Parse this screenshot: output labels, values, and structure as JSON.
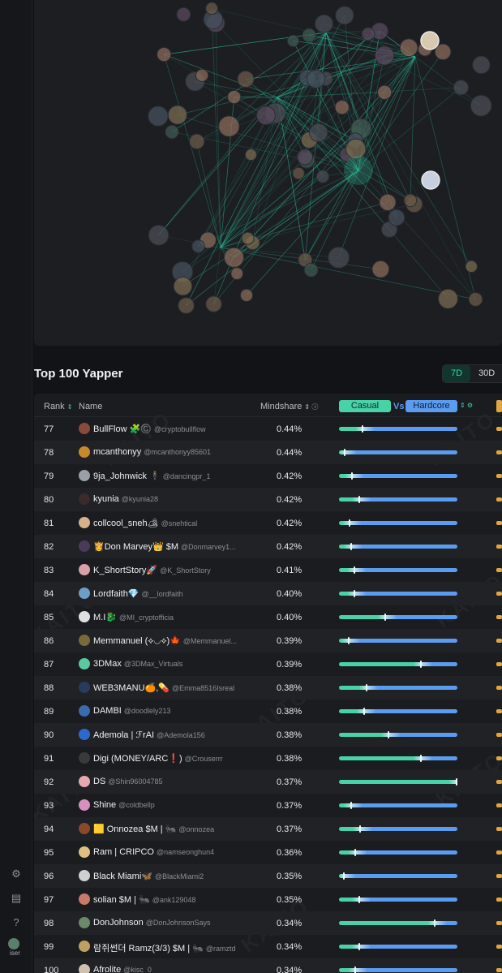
{
  "sidebar": {
    "icons": [
      "gear-icon",
      "id-card-icon",
      "help-icon"
    ],
    "user_label": "iser"
  },
  "section": {
    "title": "Top 100 Yapper",
    "periods": [
      "7D",
      "30D"
    ],
    "active_period": "7D"
  },
  "table": {
    "headers": {
      "rank": "Rank",
      "name": "Name",
      "mindshare": "Mindshare",
      "casual": "Casual",
      "vs": "Vs",
      "hardcore": "Hardcore"
    },
    "watermark": "KAITO",
    "rows": [
      {
        "rank": "77",
        "name": "BullFlow 🧩©️",
        "handle": "@cryptobullflow",
        "mindshare": "0.44%",
        "casual": 0.2,
        "color": "#8a4a3a"
      },
      {
        "rank": "78",
        "name": "mcanthonyy",
        "handle": "@mcanthonyy85601",
        "mindshare": "0.44%",
        "casual": 0.05,
        "color": "#c98a2c"
      },
      {
        "rank": "79",
        "name": "9ja_Johnwick 🕴",
        "handle": "@dancingpr_1",
        "mindshare": "0.42%",
        "casual": 0.11,
        "color": "#9aa0a6"
      },
      {
        "rank": "80",
        "name": "kyunia",
        "handle": "@kyunia28",
        "mindshare": "0.42%",
        "casual": 0.17,
        "color": "#3a2a2a"
      },
      {
        "rank": "81",
        "name": "collcool_sneh🏕",
        "handle": "@snehtical",
        "mindshare": "0.42%",
        "casual": 0.09,
        "color": "#d8b08a"
      },
      {
        "rank": "82",
        "name": "👸Don Marvey👑 $M",
        "handle": "@Donmarvey1...",
        "mindshare": "0.42%",
        "casual": 0.1,
        "color": "#4a3a5a"
      },
      {
        "rank": "83",
        "name": "K_ShortStory🚀",
        "handle": "@K_ShortStory",
        "mindshare": "0.41%",
        "casual": 0.13,
        "color": "#d9a0a8"
      },
      {
        "rank": "84",
        "name": "Lordfaith💎",
        "handle": "@__lordfaith",
        "mindshare": "0.40%",
        "casual": 0.13,
        "color": "#6aa0c8"
      },
      {
        "rank": "85",
        "name": "M.I🐉",
        "handle": "@MI_cryptofficia",
        "mindshare": "0.40%",
        "casual": 0.39,
        "color": "#e0e0e0"
      },
      {
        "rank": "86",
        "name": "Memmanuel (⟡◡⟡)🍁",
        "handle": "@Memmanuel...",
        "mindshare": "0.39%",
        "casual": 0.08,
        "color": "#7a6a3a"
      },
      {
        "rank": "87",
        "name": "3DMax",
        "handle": "@3DMax_Virtuals",
        "mindshare": "0.39%",
        "casual": 0.69,
        "color": "#5ac8a0"
      },
      {
        "rank": "88",
        "name": "WEB3MANU🍊,💊",
        "handle": "@Emma8516Isreal",
        "mindshare": "0.38%",
        "casual": 0.23,
        "color": "#2a3a5a"
      },
      {
        "rank": "89",
        "name": "DAMBI",
        "handle": "@doodlely213",
        "mindshare": "0.38%",
        "casual": 0.21,
        "color": "#3a6ab0"
      },
      {
        "rank": "90",
        "name": "Ademola | ℱrAI",
        "handle": "@Ademola156",
        "mindshare": "0.38%",
        "casual": 0.42,
        "color": "#2a6ad0"
      },
      {
        "rank": "91",
        "name": "Digi (MONEY/ARC❗)",
        "handle": "@Crouserrr",
        "mindshare": "0.38%",
        "casual": 0.69,
        "color": "#3a3a3a"
      },
      {
        "rank": "92",
        "name": "DS",
        "handle": "@Shin96004785",
        "mindshare": "0.37%",
        "casual": 0.99,
        "color": "#e8a8b0"
      },
      {
        "rank": "93",
        "name": "Shine",
        "handle": "@coldbellp",
        "mindshare": "0.37%",
        "casual": 0.1,
        "color": "#d890c0"
      },
      {
        "rank": "94",
        "name": "🟨 Onnozea $M | 🐜",
        "handle": "@onnozea",
        "mindshare": "0.37%",
        "casual": 0.18,
        "color": "#8a4a2a"
      },
      {
        "rank": "95",
        "name": "Ram | CRIPCO",
        "handle": "@namseonghun4",
        "mindshare": "0.36%",
        "casual": 0.14,
        "color": "#e0c080"
      },
      {
        "rank": "96",
        "name": "Black Miami🦋",
        "handle": "@BlackMiami2",
        "mindshare": "0.35%",
        "casual": 0.04,
        "color": "#d0d0d0"
      },
      {
        "rank": "97",
        "name": "solian $M | 🐜",
        "handle": "@ank129048",
        "mindshare": "0.35%",
        "casual": 0.17,
        "color": "#c87a6a"
      },
      {
        "rank": "98",
        "name": "DonJohnson",
        "handle": "@DonJohnsonSays",
        "mindshare": "0.34%",
        "casual": 0.81,
        "color": "#6a8a6a"
      },
      {
        "rank": "99",
        "name": "람쥐썬더 Ramz(3/3) $M | 🐜",
        "handle": "@ramztd",
        "mindshare": "0.34%",
        "casual": 0.17,
        "color": "#c0a060"
      },
      {
        "rank": "100",
        "name": "Afrolite",
        "handle": "@kisc_0",
        "mindshare": "0.34%",
        "casual": 0.14,
        "color": "#d0c0b0"
      }
    ]
  }
}
